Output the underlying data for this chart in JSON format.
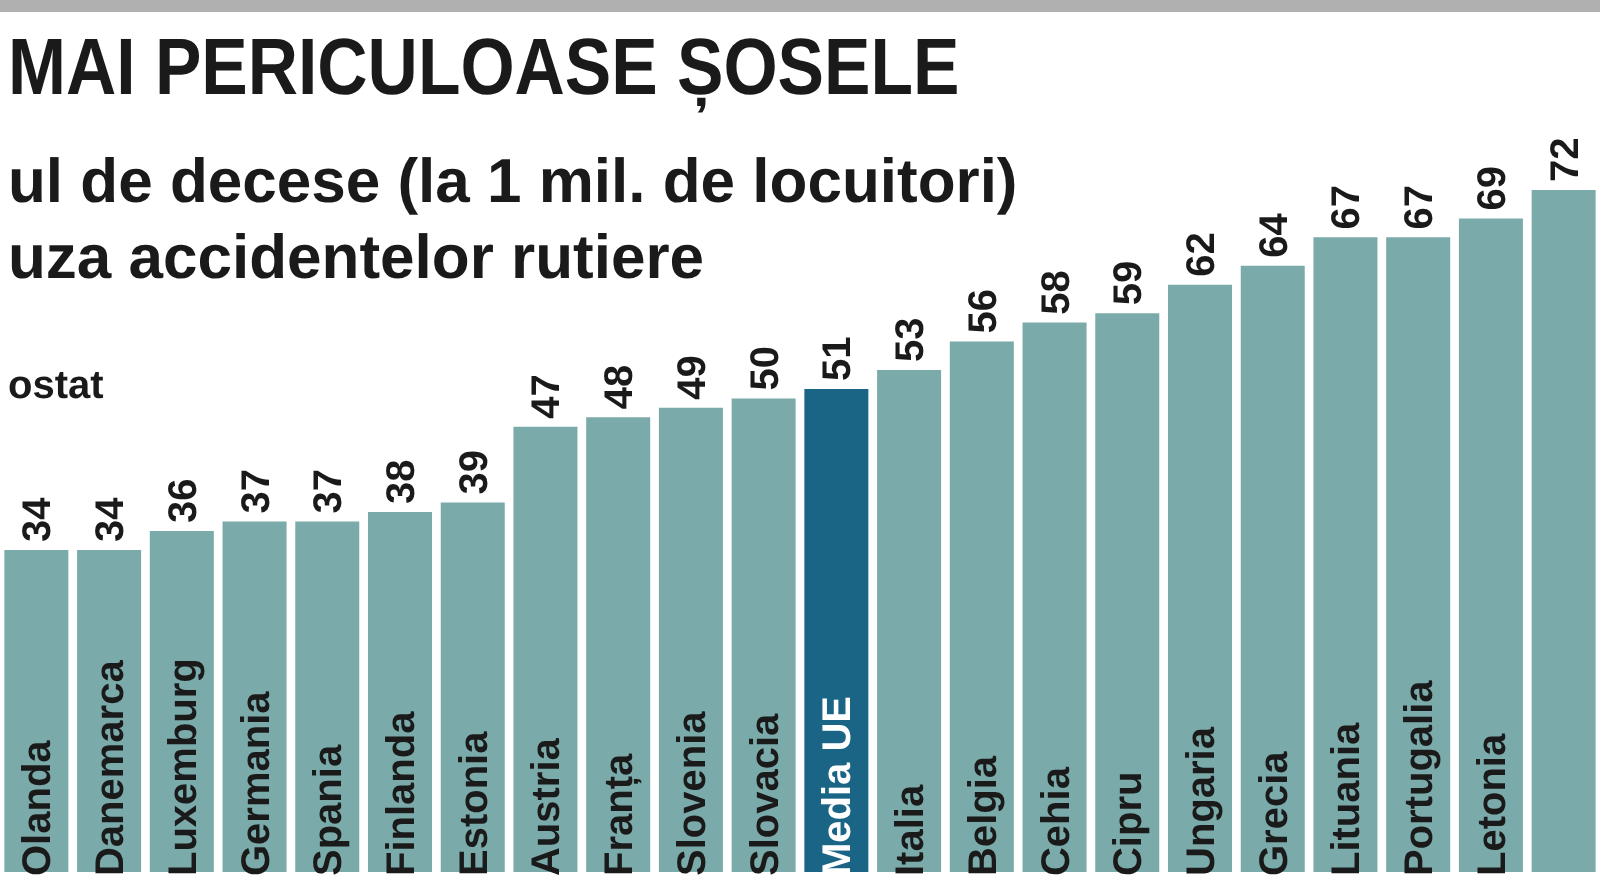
{
  "chart_data": {
    "type": "bar",
    "title": "MAI PERICULOASE ȘOSELE",
    "subtitle": "ul de decese (la 1 mil. de locuitori)\nuza accidentelor rutiere",
    "annotations": [
      "ostat"
    ],
    "categories": [
      "Olanda",
      "Danemarca",
      "Luxemburg",
      "Germania",
      "Spania",
      "Finlanda",
      "Estonia",
      "Austria",
      "Franța",
      "Slovenia",
      "Slovacia",
      "Media UE",
      "Italia",
      "Belgia",
      "Cehia",
      "Cipru",
      "Ungaria",
      "Grecia",
      "Lituania",
      "Portugalia",
      "Letonia",
      null
    ],
    "values": [
      34,
      34,
      36,
      37,
      37,
      38,
      39,
      47,
      48,
      49,
      50,
      51,
      53,
      56,
      58,
      59,
      62,
      64,
      67,
      67,
      69,
      72
    ],
    "colors": [
      "#7aabaa",
      "#7aabaa",
      "#7aabaa",
      "#7aabaa",
      "#7aabaa",
      "#7aabaa",
      "#7aabaa",
      "#7aabaa",
      "#7aabaa",
      "#7aabaa",
      "#7aabaa",
      "#1a6585",
      "#7aabaa",
      "#7aabaa",
      "#7aabaa",
      "#7aabaa",
      "#7aabaa",
      "#7aabaa",
      "#7aabaa",
      "#7aabaa",
      "#7aabaa",
      "#7aabaa"
    ],
    "data_labels": true,
    "grid": false,
    "legend": false
  }
}
